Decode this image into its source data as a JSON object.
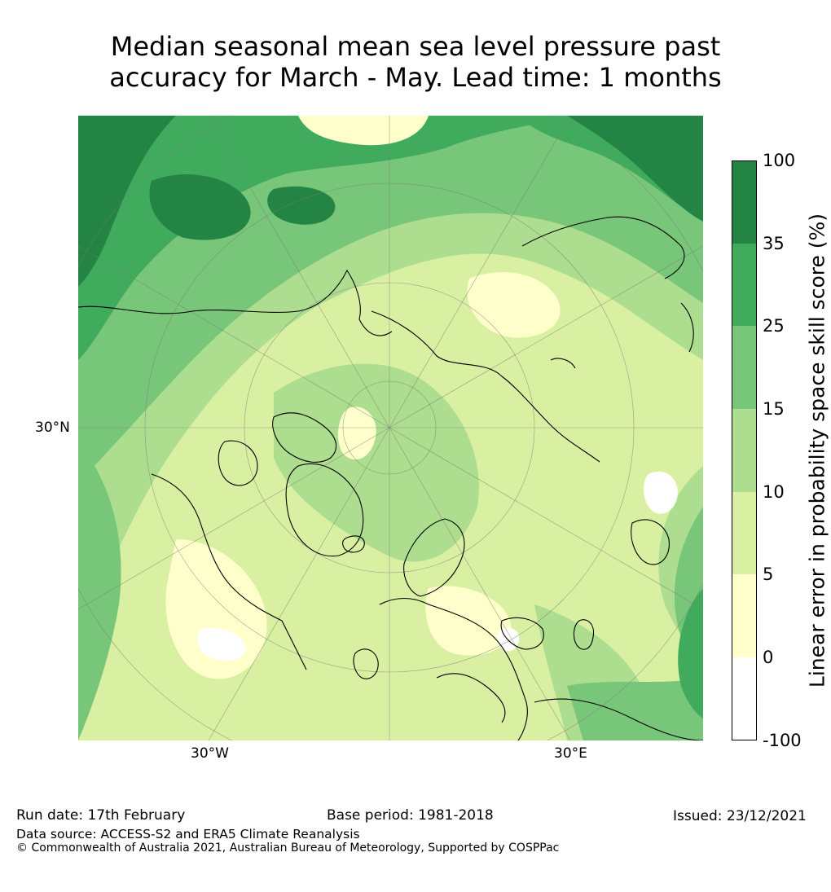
{
  "title": {
    "line1": "Median seasonal mean sea level pressure past",
    "line2": "accuracy for March - May. Lead time: 1 months"
  },
  "map": {
    "projection": "north-polar-stereographic",
    "lon_labels": [
      "30°W",
      "30°E"
    ],
    "lat_labels": [
      "30°N"
    ]
  },
  "legend": {
    "label": "Linear error in probability space skill score (%)",
    "ticks": [
      "100",
      "35",
      "25",
      "15",
      "10",
      "5",
      "0",
      "-100"
    ],
    "bins": [
      {
        "from": "-100",
        "to": "0",
        "color": "#ffffff"
      },
      {
        "from": "0",
        "to": "5",
        "color": "#ffffcc"
      },
      {
        "from": "5",
        "to": "10",
        "color": "#d9f0a3"
      },
      {
        "from": "10",
        "to": "15",
        "color": "#addd8e"
      },
      {
        "from": "15",
        "to": "25",
        "color": "#78c679"
      },
      {
        "from": "25",
        "to": "35",
        "color": "#41ab5d"
      },
      {
        "from": "35",
        "to": "100",
        "color": "#238443"
      }
    ]
  },
  "footer": {
    "run_date": "Run date: 17th February",
    "base_period": "Base period: 1981-2018",
    "issued": "Issued: 23/12/2021",
    "data_source": "Data source: ACCESS-S2 and ERA5 Climate Reanalysis",
    "copyright": "© Commonwealth of Australia 2021, Australian Bureau of Meteorology, Supported by COSPPac"
  }
}
